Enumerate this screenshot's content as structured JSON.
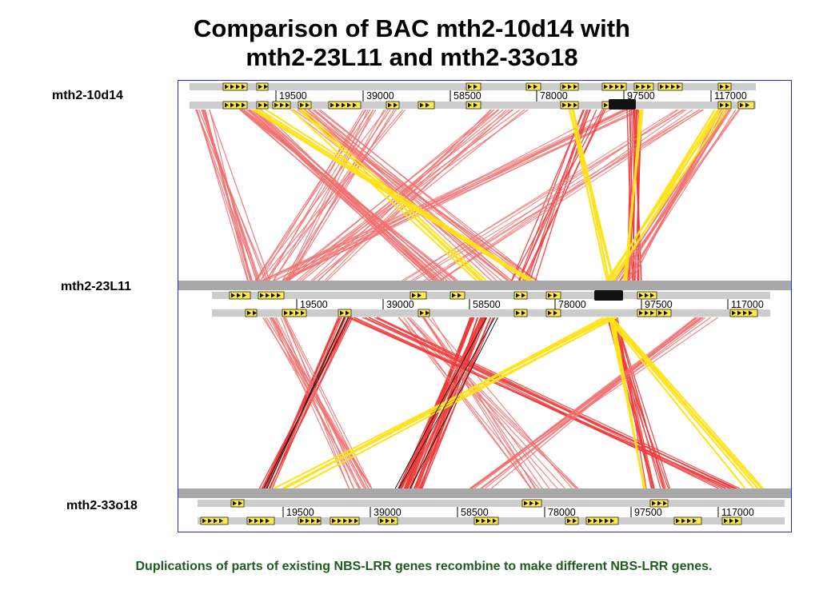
{
  "title": {
    "line1": "Comparison of BAC mth2-10d14 with",
    "line2": "mth2-23L11 and mth2-33o18"
  },
  "bacs": [
    {
      "name": "mth2-10d14",
      "ticks": [
        "19500",
        "39000",
        "58500",
        "78000",
        "97500",
        "117000"
      ]
    },
    {
      "name": "mth2-23L11",
      "ticks": [
        "19500",
        "39000",
        "58500",
        "78000",
        "97500",
        "117000"
      ]
    },
    {
      "name": "mth2-33o18",
      "ticks": [
        "19500",
        "39000",
        "58500",
        "78000",
        "97500",
        "117000"
      ]
    }
  ],
  "caption": "Duplications of parts of existing NBS-LRR genes recombine to make different NBS-LRR genes.",
  "colors": {
    "frame": "#2b2bd6",
    "match_red": "#ee3b3b",
    "match_light_red": "#f07070",
    "match_yellow": "#ffe21a",
    "gene_yellow": "#ffe84a",
    "track_grey": "#cccccc",
    "separator_grey": "#a8a8a8",
    "caption_green": "#1e5c1e"
  }
}
